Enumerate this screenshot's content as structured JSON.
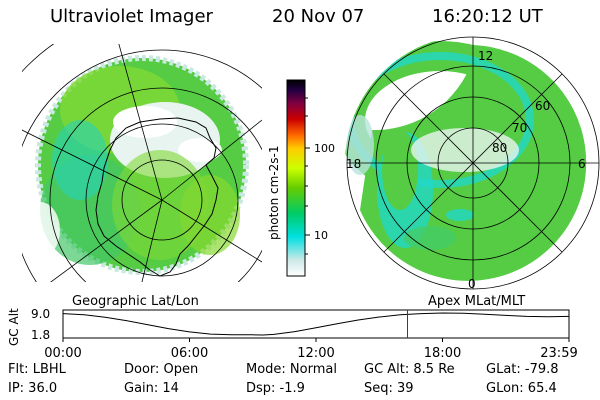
{
  "header": {
    "title": "Ultraviolet Imager",
    "date": "20 Nov 07",
    "time": "16:20:12 UT"
  },
  "colorbar": {
    "label": "photon cm-2s-1",
    "ticks": [
      "100",
      "10"
    ],
    "colors": [
      "#ffffff",
      "#cfe8e8",
      "#00e0e0",
      "#00cc66",
      "#66cc00",
      "#ccff00",
      "#ffcc00",
      "#ff6600",
      "#cc0000",
      "#800040",
      "#200040",
      "#000000"
    ]
  },
  "left_map": {
    "projection_label": "Geographic Lat/Lon"
  },
  "right_map": {
    "projection_label": "Apex MLat/MLT",
    "mlt_labels": [
      "12",
      "18",
      "6",
      "0"
    ],
    "mlat_labels": [
      "60",
      "70",
      "80"
    ]
  },
  "chart_data": {
    "type": "line",
    "title": "",
    "ylabel": "GC Alt",
    "y_ticks": [
      "9.0",
      "1.8"
    ],
    "ylim": [
      1.8,
      9.0
    ],
    "x_ticks": [
      "00:00",
      "06:00",
      "12:00",
      "18:00",
      "23:59"
    ],
    "series": [
      {
        "x": [
          0,
          1,
          2,
          3,
          4,
          5,
          6,
          7,
          8,
          9,
          9.5,
          10,
          11,
          12,
          13,
          14,
          15,
          16,
          17,
          18,
          19,
          20,
          21,
          22,
          23,
          24
        ],
        "values": [
          8.8,
          8.4,
          7.6,
          6.5,
          5.2,
          3.9,
          2.8,
          2.1,
          1.9,
          1.85,
          1.8,
          2.0,
          2.9,
          4.2,
          5.5,
          6.7,
          7.7,
          8.4,
          8.8,
          9.0,
          8.9,
          8.6,
          8.2,
          7.9,
          7.8,
          7.9
        ]
      }
    ],
    "marker_time": "16:20:12",
    "marker_x": 16.34,
    "marker_color": "#cc0000"
  },
  "footer": {
    "filter": "Flt: LBHL",
    "ip": "IP: 36.0",
    "door": "Door: Open",
    "gain": "Gain: 14",
    "mode": "Mode: Normal",
    "dsp": "Dsp:    -1.9",
    "gc_alt": "GC Alt: 8.5 Re",
    "seq": "Seq: 39",
    "glat": "GLat: -79.8",
    "glon": "GLon:  65.4"
  }
}
